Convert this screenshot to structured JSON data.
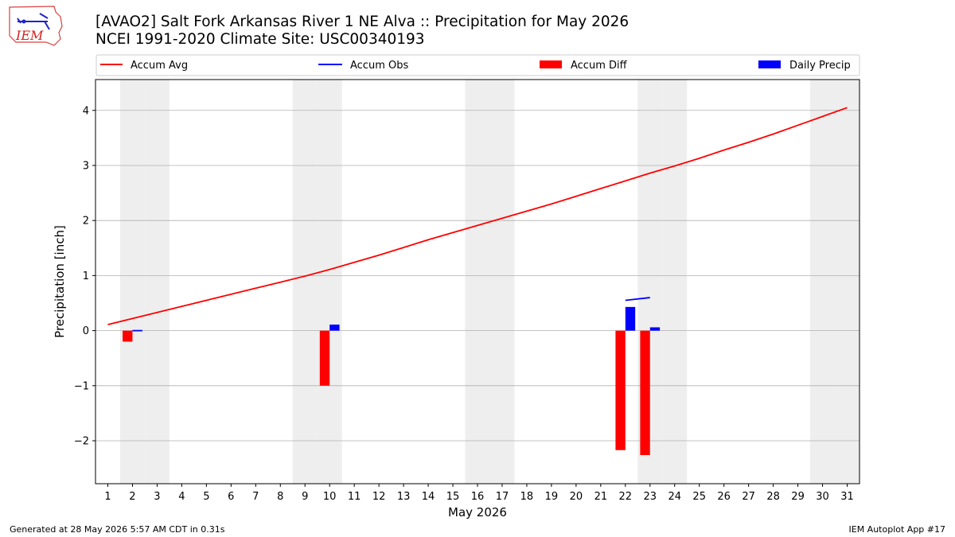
{
  "header": {
    "title_line1": "[AVAO2] Salt Fork Arkansas River 1 NE Alva :: Precipitation for May 2026",
    "title_line2": "NCEI 1991-2020 Climate Site: USC00340193",
    "logo_text": "IEM"
  },
  "footer": {
    "left": "Generated at 28 May 2026 5:57 AM CDT in 0.31s",
    "right": "IEM Autoplot App #17"
  },
  "colors": {
    "accum_avg": "#ff0000",
    "accum_obs": "#0000ff",
    "accum_diff": "#ff0000",
    "daily_precip": "#0000ff",
    "weekend_shade": "#eeeeee",
    "grid": "#b0b0b0"
  },
  "chart_data": {
    "type": "bar",
    "xlabel": "May 2026",
    "ylabel": "Precipitation [inch]",
    "xlim": [
      0.5,
      31.5
    ],
    "ylim": [
      -2.78,
      4.56
    ],
    "x_ticks": [
      1,
      2,
      3,
      4,
      5,
      6,
      7,
      8,
      9,
      10,
      11,
      12,
      13,
      14,
      15,
      16,
      17,
      18,
      19,
      20,
      21,
      22,
      23,
      24,
      25,
      26,
      27,
      28,
      29,
      30,
      31
    ],
    "y_ticks": [
      -2,
      -1,
      0,
      1,
      2,
      3,
      4
    ],
    "grid": "horizontal",
    "legend_position": "top",
    "weekend_days": [
      2,
      3,
      9,
      10,
      16,
      17,
      23,
      24,
      30,
      31
    ],
    "series": [
      {
        "name": "Accum Avg",
        "kind": "line",
        "x": [
          1,
          2,
          3,
          4,
          5,
          6,
          7,
          8,
          9,
          10,
          11,
          12,
          13,
          14,
          15,
          16,
          17,
          18,
          19,
          20,
          21,
          22,
          23,
          24,
          25,
          26,
          27,
          28,
          29,
          30,
          31
        ],
        "values": [
          0.11,
          0.22,
          0.33,
          0.44,
          0.55,
          0.66,
          0.77,
          0.88,
          0.99,
          1.11,
          1.24,
          1.37,
          1.51,
          1.65,
          1.78,
          1.91,
          2.04,
          2.17,
          2.3,
          2.44,
          2.58,
          2.72,
          2.86,
          2.99,
          3.13,
          3.28,
          3.42,
          3.57,
          3.73,
          3.89,
          4.05
        ]
      },
      {
        "name": "Accum Obs",
        "kind": "line",
        "segments": [
          {
            "x": [
              2,
              2.4
            ],
            "values": [
              0.0,
              0.0
            ]
          },
          {
            "x": [
              22,
              23
            ],
            "values": [
              0.55,
              0.6
            ]
          }
        ]
      },
      {
        "name": "Accum Diff",
        "kind": "bar",
        "x": [
          2,
          10,
          22,
          23
        ],
        "values": [
          -0.2,
          -1.0,
          -2.17,
          -2.26
        ]
      },
      {
        "name": "Daily Precip",
        "kind": "bar",
        "x": [
          2,
          10,
          22,
          23
        ],
        "values": [
          0.005,
          0.11,
          0.43,
          0.06
        ]
      }
    ]
  }
}
